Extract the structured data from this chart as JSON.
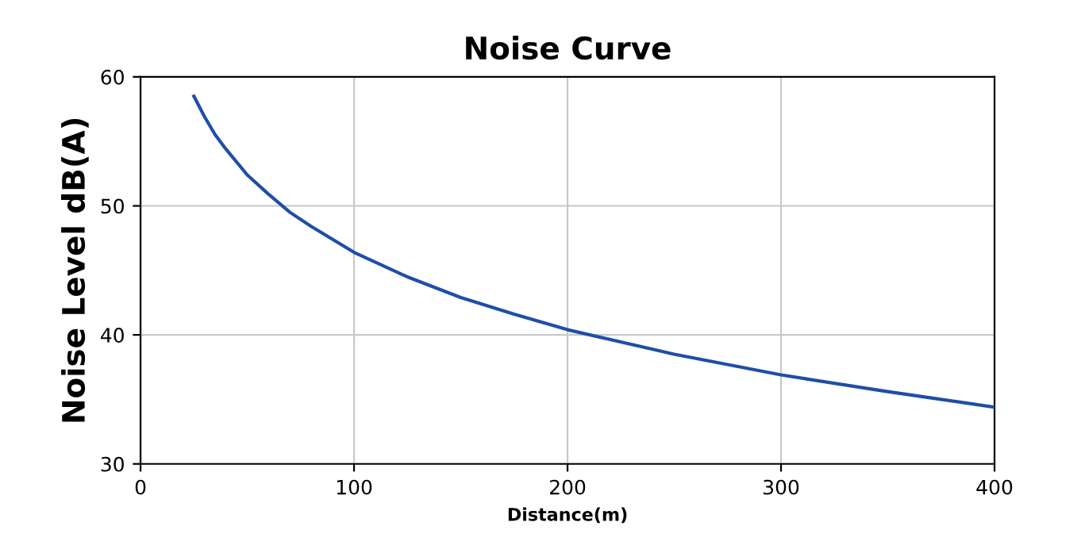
{
  "chart_data": {
    "type": "line",
    "title": "Noise Curve",
    "xlabel": "Distance(m)",
    "ylabel": "Noise Level dB(A)",
    "x": [
      25,
      30,
      35,
      40,
      50,
      60,
      70,
      80,
      100,
      125,
      150,
      175,
      200,
      250,
      300,
      350,
      400
    ],
    "series": [
      {
        "color": "#1f4ea8",
        "values": [
          58.5,
          56.9,
          55.5,
          54.4,
          52.4,
          50.9,
          49.5,
          48.4,
          46.4,
          44.5,
          42.9,
          41.6,
          40.4,
          38.5,
          36.9,
          35.6,
          34.4
        ]
      }
    ],
    "xlim": [
      0,
      400
    ],
    "xticks": [
      0,
      100,
      200,
      300,
      400
    ],
    "ylim": [
      30,
      60
    ],
    "yticks": [
      30,
      40,
      50,
      60
    ],
    "grid": true,
    "marker": "none",
    "line_style": "solid"
  }
}
